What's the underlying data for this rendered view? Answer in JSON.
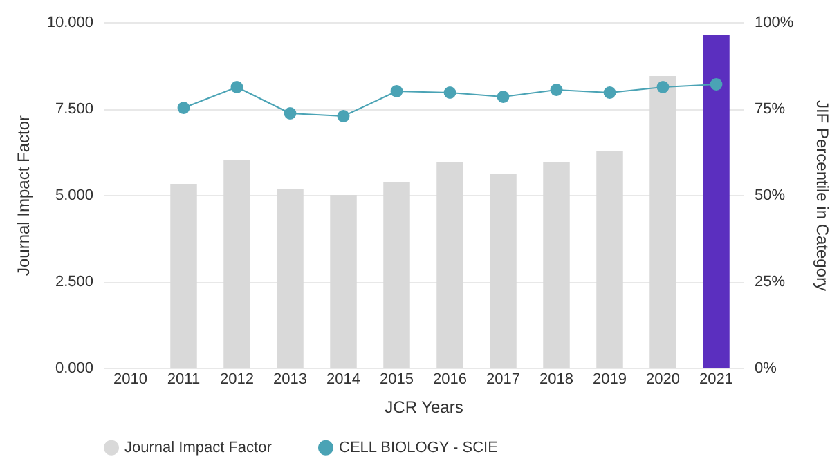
{
  "chart_data": {
    "type": "bar",
    "xlabel": "JCR Years",
    "ylabel": "Journal Impact Factor",
    "y2label": "JIF Percentile in Category",
    "categories": [
      "2010",
      "2011",
      "2012",
      "2013",
      "2014",
      "2015",
      "2016",
      "2017",
      "2018",
      "2019",
      "2020",
      "2021"
    ],
    "series": [
      {
        "name": "Journal Impact Factor",
        "color": "#d9d9d9",
        "colors": [
          "#d9d9d9",
          "#d9d9d9",
          "#d9d9d9",
          "#d9d9d9",
          "#d9d9d9",
          "#d9d9d9",
          "#d9d9d9",
          "#d9d9d9",
          "#d9d9d9",
          "#d9d9d9",
          "#d9d9d9",
          "#5b2fbf"
        ],
        "values": [
          null,
          5.32,
          6.0,
          5.16,
          5.0,
          5.36,
          5.96,
          5.6,
          5.96,
          6.28,
          8.44,
          9.64
        ]
      },
      {
        "name": "CELL BIOLOGY - SCIE",
        "type": "line",
        "axis": "y2",
        "color": "#4aa3b5",
        "marker": "circle",
        "values": [
          null,
          75.2,
          81.2,
          73.6,
          72.8,
          80.0,
          79.6,
          78.4,
          80.4,
          79.6,
          81.2,
          82.0
        ]
      }
    ],
    "ylim": [
      0,
      10
    ],
    "yticks": [
      {
        "value": 0,
        "label": "0.000"
      },
      {
        "value": 2.5,
        "label": "2.500"
      },
      {
        "value": 5,
        "label": "5.000"
      },
      {
        "value": 7.5,
        "label": "7.500"
      },
      {
        "value": 10,
        "label": "10.000"
      }
    ],
    "y2lim": [
      0,
      100
    ],
    "y2ticks": [
      {
        "value": 0,
        "label": "0%"
      },
      {
        "value": 25,
        "label": "25%"
      },
      {
        "value": 50,
        "label": "50%"
      },
      {
        "value": 75,
        "label": "75%"
      },
      {
        "value": 100,
        "label": "100%"
      }
    ],
    "grid": "y",
    "legend": "bottom"
  }
}
